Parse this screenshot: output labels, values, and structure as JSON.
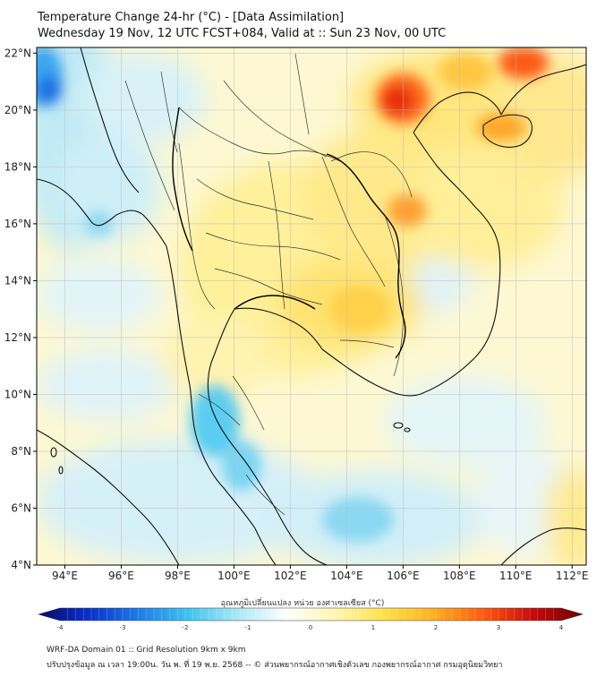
{
  "title": {
    "line1": "Temperature Change 24-hr (°C) - [Data Assimilation]",
    "line2": "Wednesday 19 Nov, 12 UTC FCST+084, Valid at :: Sun 23 Nov, 00 UTC"
  },
  "map": {
    "lon_ticks": [
      "94°E",
      "96°E",
      "98°E",
      "100°E",
      "102°E",
      "104°E",
      "106°E",
      "108°E",
      "110°E",
      "112°E"
    ],
    "lat_ticks": [
      "22°N",
      "20°N",
      "18°N",
      "16°N",
      "14°N",
      "12°N",
      "10°N",
      "8°N",
      "6°N",
      "4°N"
    ],
    "lon_range": [
      93,
      112.5
    ],
    "lat_range": [
      4,
      22.2
    ],
    "hot_spots": [
      {
        "name": "northern-vietnam-hotspot",
        "lon": 105.8,
        "lat": 20.6,
        "value": 3.2
      },
      {
        "name": "hainan-hotspot",
        "lon": 109.6,
        "lat": 19.4,
        "value": 2.4
      },
      {
        "name": "east-hotspot",
        "lon": 110.5,
        "lat": 21.8,
        "value": 3.0
      },
      {
        "name": "laos-hotspot",
        "lon": 106.2,
        "lat": 16.4,
        "value": 2.2
      }
    ],
    "cold_spots": [
      {
        "name": "myanmar-northwest-coldspot",
        "lon": 93.2,
        "lat": 21.1,
        "value": -2.5
      },
      {
        "name": "southern-thailand-coldspot",
        "lon": 99.6,
        "lat": 7.5,
        "value": -1.3
      },
      {
        "name": "andaman-coldspot",
        "lon": 95.5,
        "lat": 17.5,
        "value": -0.9
      }
    ]
  },
  "colorbar": {
    "title": "อุณหภูมิเปลี่ยนแปลง หน่วย องศาเซลเซียส (°C)",
    "ticks": [
      "-4",
      "-3",
      "-2",
      "-1",
      "0",
      "1",
      "2",
      "3",
      "4"
    ],
    "min": -4,
    "max": 4,
    "colors": [
      "#08086b",
      "#0a30c8",
      "#1c7ae6",
      "#3cc2f0",
      "#a8e8f6",
      "#ffffff",
      "#fff6b0",
      "#ffe14a",
      "#ffb020",
      "#ff5a10",
      "#c80a0a",
      "#6b0303"
    ]
  },
  "footer": {
    "line1": "WRF-DA Domain 01 :: Grid Resolution 9km x 9km",
    "line2": "ปรับปรุงข้อมูล ณ เวลา 19:00น. วัน พ. ที่ 19 พ.ย. 2568 -- © ส่วนพยากรณ์อากาศเชิงตัวเลข กองพยากรณ์อากาศ กรมอุตุนิยมวิทยา"
  }
}
